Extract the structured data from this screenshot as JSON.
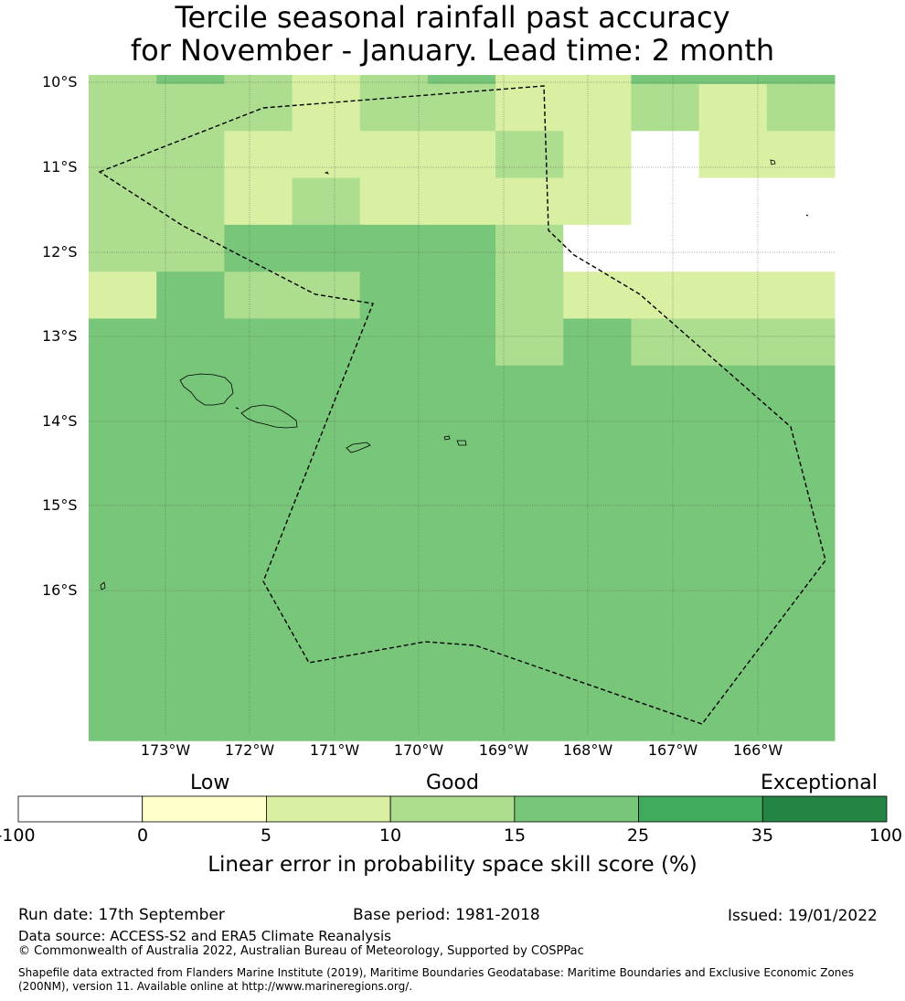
{
  "title": {
    "line1": "Tercile seasonal rainfall past accuracy",
    "line2": "for November - January. Lead time: 2 month"
  },
  "map": {
    "lat_labels": [
      "10°S",
      "11°S",
      "12°S",
      "13°S",
      "14°S",
      "15°S",
      "16°S"
    ],
    "lon_labels": [
      "173°W",
      "172°W",
      "171°W",
      "170°W",
      "169°W",
      "168°W",
      "167°W",
      "166°W"
    ],
    "skill_grid": [
      [
        10,
        20,
        10,
        5,
        10,
        15,
        5,
        5,
        20,
        15,
        15
      ],
      [
        10,
        10,
        10,
        5,
        10,
        10,
        5,
        5,
        10,
        5,
        10
      ],
      [
        10,
        10,
        5,
        5,
        5,
        5,
        10,
        5,
        -1,
        5,
        5
      ],
      [
        10,
        10,
        5,
        10,
        5,
        5,
        5,
        5,
        -1,
        -1,
        -1
      ],
      [
        10,
        10,
        15,
        15,
        15,
        15,
        10,
        -1,
        -1,
        -1,
        -1
      ],
      [
        5,
        15,
        10,
        10,
        15,
        15,
        10,
        5,
        5,
        5,
        5
      ],
      [
        15,
        15,
        20,
        20,
        15,
        15,
        10,
        15,
        10,
        10,
        10
      ],
      [
        15,
        15,
        20,
        15,
        15,
        15,
        15,
        20,
        20,
        15,
        15
      ],
      [
        20,
        20,
        20,
        20,
        15,
        20,
        20,
        20,
        20,
        15,
        20
      ],
      [
        20,
        20,
        20,
        15,
        20,
        20,
        20,
        20,
        15,
        20,
        15
      ],
      [
        20,
        20,
        20,
        15,
        20,
        20,
        20,
        20,
        20,
        15,
        15
      ],
      [
        20,
        20,
        20,
        15,
        20,
        15,
        15,
        20,
        20,
        20,
        20
      ],
      [
        20,
        20,
        20,
        15,
        20,
        20,
        20,
        20,
        20,
        20,
        20
      ],
      [
        20,
        20,
        20,
        20,
        20,
        20,
        20,
        20,
        20,
        20,
        15
      ],
      [
        20,
        20,
        20,
        20,
        20,
        20,
        20,
        20,
        15,
        20,
        20
      ]
    ],
    "grid_cell_size_deg": 0.5,
    "colors": {
      "line": "#000000"
    }
  },
  "colorbar": {
    "categories": [
      "Low",
      "Good",
      "Exceptional"
    ],
    "ticks": [
      "-100",
      "0",
      "5",
      "10",
      "15",
      "25",
      "35",
      "100"
    ],
    "bins": [
      {
        "from": -100,
        "to": 0,
        "color": "#ffffff"
      },
      {
        "from": 0,
        "to": 5,
        "color": "#ffffcc"
      },
      {
        "from": 5,
        "to": 10,
        "color": "#d9f0a3"
      },
      {
        "from": 10,
        "to": 15,
        "color": "#addd8e"
      },
      {
        "from": 15,
        "to": 25,
        "color": "#78c679"
      },
      {
        "from": 25,
        "to": 35,
        "color": "#41ab5d"
      },
      {
        "from": 35,
        "to": 100,
        "color": "#238443"
      }
    ],
    "label": "Linear error in probability space skill score (%)"
  },
  "footer": {
    "run_date": "Run date: 17th September",
    "base_period": "Base period: 1981-2018",
    "issued": "Issued: 19/01/2022",
    "data_source": "Data source: ACCESS-S2 and ERA5 Climate Reanalysis",
    "copyright": "© Commonwealth of Australia 2022, Australian Bureau of Meteorology, Supported by COSPPac",
    "shapefile_line1": "Shapefile data extracted from Flanders Marine Institute (2019), Maritime Boundaries Geodatabase: Maritime Boundaries and Exclusive Economic Zones",
    "shapefile_line2": "(200NM), version 11. Available online at http://www.marineregions.org/."
  }
}
